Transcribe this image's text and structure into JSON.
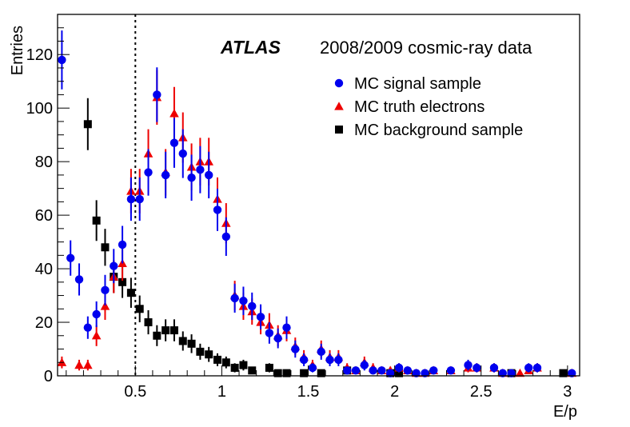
{
  "chart_data": {
    "type": "scatter",
    "title_bold": "ATLAS",
    "title": "2008/2009 cosmic-ray data",
    "xlabel": "E/p",
    "ylabel": "Entries",
    "xlim": [
      0.05,
      3.07
    ],
    "ylim": [
      0,
      135
    ],
    "x_ticks": [
      0.5,
      1,
      1.5,
      2,
      2.5,
      3
    ],
    "x_tick_labels": [
      "0.5",
      "1",
      "1.5",
      "2",
      "2.5",
      "3"
    ],
    "y_ticks": [
      0,
      20,
      40,
      60,
      80,
      100,
      120
    ],
    "y_tick_labels": [
      "0",
      "20",
      "40",
      "60",
      "80",
      "100",
      "120"
    ],
    "cut_line_x": 0.5,
    "legend_position": "top-right",
    "series": [
      {
        "name": "MC signal sample",
        "marker": "circle",
        "color": "#0000ee",
        "points": [
          [
            0.075,
            118,
            11
          ],
          [
            0.125,
            44,
            6.6
          ],
          [
            0.175,
            36,
            6
          ],
          [
            0.225,
            18,
            4.2
          ],
          [
            0.275,
            23,
            4.8
          ],
          [
            0.325,
            32,
            5.7
          ],
          [
            0.375,
            41,
            6.4
          ],
          [
            0.425,
            49,
            7
          ],
          [
            0.475,
            66,
            8.1
          ],
          [
            0.525,
            66,
            8.1
          ],
          [
            0.575,
            76,
            8.7
          ],
          [
            0.625,
            105,
            10.2
          ],
          [
            0.675,
            75,
            8.7
          ],
          [
            0.725,
            87,
            9.3
          ],
          [
            0.775,
            83,
            9.1
          ],
          [
            0.825,
            74,
            8.6
          ],
          [
            0.875,
            77,
            8.8
          ],
          [
            0.925,
            75,
            8.7
          ],
          [
            0.975,
            62,
            7.9
          ],
          [
            1.025,
            52,
            7.2
          ],
          [
            1.075,
            29,
            5.4
          ],
          [
            1.125,
            28,
            5.3
          ],
          [
            1.175,
            26,
            5.1
          ],
          [
            1.225,
            22,
            4.7
          ],
          [
            1.275,
            16,
            4
          ],
          [
            1.325,
            14,
            3.7
          ],
          [
            1.375,
            18,
            4.2
          ],
          [
            1.425,
            10,
            3.2
          ],
          [
            1.475,
            6,
            2.4
          ],
          [
            1.525,
            3,
            1.7
          ],
          [
            1.575,
            9,
            3
          ],
          [
            1.625,
            6,
            2.4
          ],
          [
            1.675,
            6,
            2.4
          ],
          [
            1.725,
            2,
            1.4
          ],
          [
            1.775,
            2,
            1.4
          ],
          [
            1.825,
            4,
            2
          ],
          [
            1.875,
            2,
            1.4
          ],
          [
            1.925,
            2,
            1.4
          ],
          [
            1.975,
            1,
            1
          ],
          [
            2.025,
            3,
            1.7
          ],
          [
            2.075,
            2,
            1.4
          ],
          [
            2.125,
            1,
            1
          ],
          [
            2.175,
            1,
            1
          ],
          [
            2.225,
            2,
            1.4
          ],
          [
            2.325,
            2,
            1.4
          ],
          [
            2.425,
            4,
            2
          ],
          [
            2.475,
            3,
            1.7
          ],
          [
            2.575,
            3,
            1.7
          ],
          [
            2.625,
            1,
            1
          ],
          [
            2.675,
            1,
            1
          ],
          [
            2.775,
            3,
            1.7
          ],
          [
            2.825,
            3,
            1.7
          ],
          [
            3.025,
            1,
            1
          ]
        ]
      },
      {
        "name": "MC truth electrons",
        "marker": "triangle",
        "color": "#ee0000",
        "points": [
          [
            0.075,
            5,
            2.2
          ],
          [
            0.175,
            4,
            2
          ],
          [
            0.225,
            4,
            2
          ],
          [
            0.275,
            15,
            3.9
          ],
          [
            0.325,
            26,
            5.1
          ],
          [
            0.375,
            37,
            6.1
          ],
          [
            0.425,
            42,
            6.5
          ],
          [
            0.475,
            69,
            8.3
          ],
          [
            0.525,
            69,
            8.3
          ],
          [
            0.575,
            83,
            9.1
          ],
          [
            0.625,
            104,
            10.2
          ],
          [
            0.675,
            76,
            8.7
          ],
          [
            0.725,
            98,
            9.9
          ],
          [
            0.775,
            89,
            9.4
          ],
          [
            0.825,
            78,
            8.8
          ],
          [
            0.875,
            80,
            8.9
          ],
          [
            0.925,
            80,
            8.9
          ],
          [
            0.975,
            66,
            8.1
          ],
          [
            1.025,
            57,
            7.5
          ],
          [
            1.075,
            30,
            5.5
          ],
          [
            1.125,
            26,
            5.1
          ],
          [
            1.175,
            24,
            4.9
          ],
          [
            1.225,
            20,
            4.5
          ],
          [
            1.275,
            19,
            4.4
          ],
          [
            1.325,
            15,
            3.9
          ],
          [
            1.375,
            17,
            4.1
          ],
          [
            1.425,
            11,
            3.3
          ],
          [
            1.475,
            7,
            2.6
          ],
          [
            1.525,
            4,
            2
          ],
          [
            1.575,
            10,
            3.2
          ],
          [
            1.625,
            7,
            2.6
          ],
          [
            1.675,
            7,
            2.6
          ],
          [
            1.725,
            3,
            1.7
          ],
          [
            1.775,
            2,
            1.4
          ],
          [
            1.825,
            5,
            2.2
          ],
          [
            1.875,
            3,
            1.7
          ],
          [
            1.925,
            2,
            1.4
          ],
          [
            1.975,
            2,
            1.4
          ],
          [
            2.025,
            3,
            1.7
          ],
          [
            2.075,
            2,
            1.4
          ],
          [
            2.125,
            1,
            1
          ],
          [
            2.175,
            1,
            1
          ],
          [
            2.225,
            2,
            1.4
          ],
          [
            2.325,
            2,
            1.4
          ],
          [
            2.425,
            3,
            1.7
          ],
          [
            2.475,
            3,
            1.7
          ],
          [
            2.575,
            3,
            1.7
          ],
          [
            2.625,
            1,
            1
          ],
          [
            2.725,
            1,
            1
          ],
          [
            2.775,
            2,
            1.4
          ],
          [
            2.825,
            3,
            1.7
          ],
          [
            3.025,
            1,
            1
          ]
        ]
      },
      {
        "name": "MC background sample",
        "marker": "square",
        "color": "#000000",
        "points": [
          [
            0.225,
            94,
            9.7
          ],
          [
            0.275,
            58,
            7.6
          ],
          [
            0.325,
            48,
            6.9
          ],
          [
            0.375,
            37,
            6.1
          ],
          [
            0.425,
            35,
            5.9
          ],
          [
            0.475,
            31,
            5.6
          ],
          [
            0.525,
            25,
            5
          ],
          [
            0.575,
            20,
            4.5
          ],
          [
            0.625,
            15,
            3.9
          ],
          [
            0.675,
            17,
            4.1
          ],
          [
            0.725,
            17,
            4.1
          ],
          [
            0.775,
            13,
            3.6
          ],
          [
            0.825,
            12,
            3.5
          ],
          [
            0.875,
            9,
            3
          ],
          [
            0.925,
            8,
            2.8
          ],
          [
            0.975,
            6,
            2.4
          ],
          [
            1.025,
            5,
            2.2
          ],
          [
            1.075,
            3,
            1.7
          ],
          [
            1.125,
            4,
            2
          ],
          [
            1.175,
            2,
            1.4
          ],
          [
            1.275,
            3,
            1.7
          ],
          [
            1.325,
            1,
            1
          ],
          [
            1.375,
            1,
            1
          ],
          [
            1.475,
            1,
            1
          ],
          [
            1.575,
            1,
            1
          ],
          [
            1.725,
            2,
            1.4
          ],
          [
            1.975,
            1,
            1
          ],
          [
            2.025,
            1,
            1
          ],
          [
            2.675,
            1,
            1
          ],
          [
            2.975,
            1,
            1
          ]
        ]
      }
    ]
  }
}
